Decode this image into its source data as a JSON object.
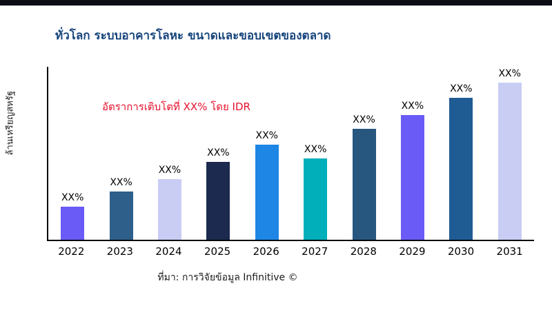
{
  "page": {
    "title": "ทั่วโลก ระบบอาคารโลหะ ขนาดและขอบเขตของตลาด",
    "y_axis_label": "ล้านเหรียญสหรัฐ",
    "annotation": "อัตราการเติบโตที่ XX% โดย IDR",
    "source": "ที่มา: การวิจัยข้อมูล Infinitive ©"
  },
  "colors": {
    "title": "#17457c",
    "annotation": "#e8112d",
    "top_strip": "#0c0c14"
  },
  "chart_data": {
    "type": "bar",
    "title": "ทั่วโลก ระบบอาคารโลหะ ขนาดและขอบเขตของตลาด",
    "xlabel": "",
    "ylabel": "ล้านเหรียญสหรัฐ",
    "categories": [
      "2022",
      "2023",
      "2024",
      "2025",
      "2026",
      "2027",
      "2028",
      "2029",
      "2030",
      "2031"
    ],
    "values": [
      19,
      28,
      35,
      45,
      55,
      47,
      64,
      72,
      82,
      91
    ],
    "values_note": "relative bar heights in percent of plot area; actual values masked as XX% in source image",
    "bar_labels": [
      "XX%",
      "XX%",
      "XX%",
      "XX%",
      "XX%",
      "XX%",
      "XX%",
      "XX%",
      "XX%",
      "XX%"
    ],
    "bar_colors": [
      "#6a5bf7",
      "#2d5f8a",
      "#c9cdf4",
      "#1b2a4e",
      "#1e86e5",
      "#00afb9",
      "#27567f",
      "#6a5bf7",
      "#1f5c94",
      "#c9cdf4"
    ],
    "annotation": "อัตราการเติบโตที่ XX% โดย IDR",
    "legend": "none",
    "grid": false,
    "ylim": [
      0,
      100
    ]
  }
}
